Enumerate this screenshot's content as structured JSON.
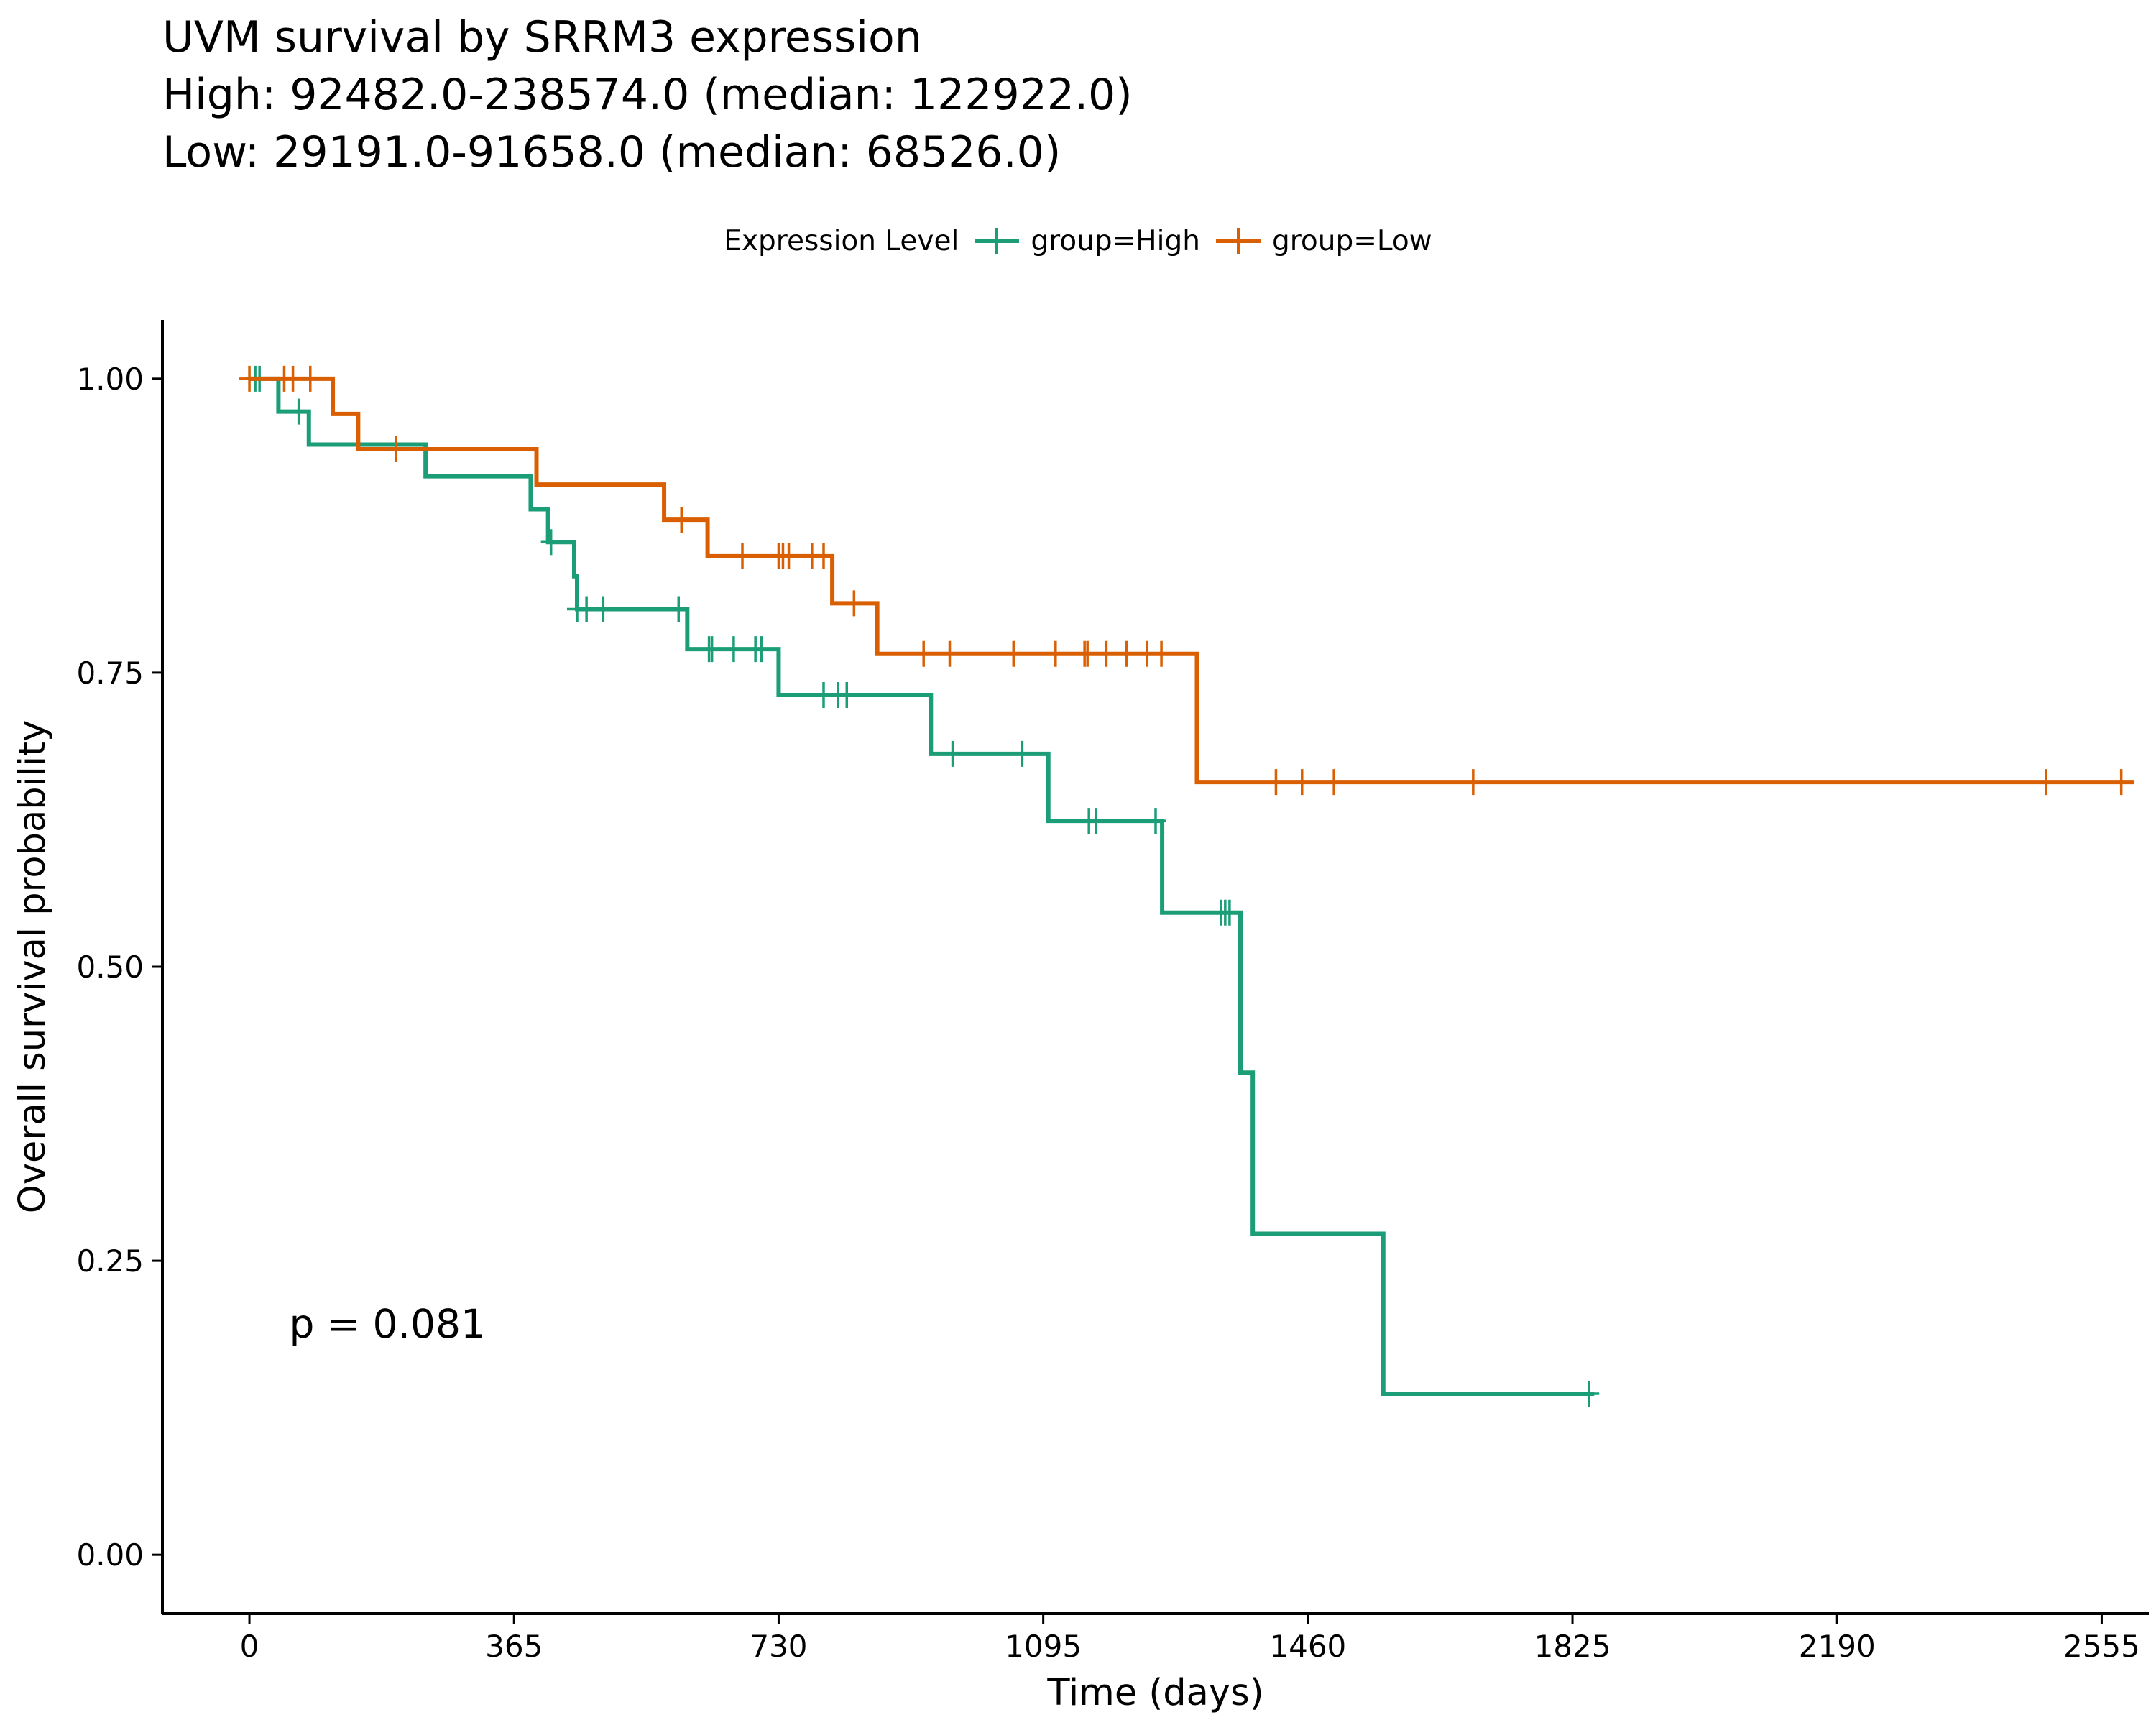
{
  "chart_data": {
    "type": "line",
    "subtype": "kaplan-meier step",
    "title": "UVM survival by SRRM3 expression",
    "subtitle_lines": [
      "High: 92482.0-238574.0 (median: 122922.0)",
      "Low: 29191.0-91658.0 (median: 68526.0)"
    ],
    "xlabel": "Time (days)",
    "ylabel": "Overall survival probability",
    "xlim": [
      -120,
      2620
    ],
    "ylim": [
      -0.05,
      1.05
    ],
    "x_ticks": [
      0,
      365,
      730,
      1095,
      1460,
      1825,
      2190,
      2555
    ],
    "y_ticks": [
      0,
      0.25,
      0.5,
      0.75,
      1.0
    ],
    "y_tick_labels": [
      "0.00",
      "0.25",
      "0.50",
      "0.75",
      "1.00"
    ],
    "grid": false,
    "legend": {
      "title": "Expression Level",
      "position": "top"
    },
    "annotation": {
      "text": "p = 0.081",
      "x": 55,
      "y": 0.197
    },
    "series": [
      {
        "name": "group=High",
        "color": "#1b9e77",
        "steps": [
          [
            0,
            1.0
          ],
          [
            40,
            0.972
          ],
          [
            82,
            0.944
          ],
          [
            243,
            0.917
          ],
          [
            388,
            0.889
          ],
          [
            412,
            0.861
          ],
          [
            448,
            0.832
          ],
          [
            452,
            0.804
          ],
          [
            604,
            0.77
          ],
          [
            730,
            0.731
          ],
          [
            940,
            0.681
          ],
          [
            1102,
            0.624
          ],
          [
            1259,
            0.546
          ],
          [
            1367,
            0.41
          ],
          [
            1384,
            0.273
          ],
          [
            1564,
            0.137
          ]
        ],
        "end_x": 1855,
        "censors": [
          [
            8,
            1.0
          ],
          [
            14,
            1.0
          ],
          [
            68,
            0.972
          ],
          [
            416,
            0.861
          ],
          [
            452,
            0.804
          ],
          [
            465,
            0.804
          ],
          [
            488,
            0.804
          ],
          [
            592,
            0.804
          ],
          [
            634,
            0.77
          ],
          [
            638,
            0.77
          ],
          [
            668,
            0.77
          ],
          [
            698,
            0.77
          ],
          [
            706,
            0.77
          ],
          [
            792,
            0.731
          ],
          [
            812,
            0.731
          ],
          [
            824,
            0.731
          ],
          [
            970,
            0.681
          ],
          [
            1066,
            0.681
          ],
          [
            1158,
            0.624
          ],
          [
            1168,
            0.624
          ],
          [
            1250,
            0.624
          ],
          [
            1340,
            0.546
          ],
          [
            1346,
            0.546
          ],
          [
            1352,
            0.546
          ],
          [
            1848,
            0.137
          ]
        ]
      },
      {
        "name": "group=Low",
        "color": "#d95f02",
        "steps": [
          [
            0,
            1.0
          ],
          [
            115,
            0.97
          ],
          [
            150,
            0.94
          ],
          [
            396,
            0.91
          ],
          [
            572,
            0.88
          ],
          [
            632,
            0.849
          ],
          [
            804,
            0.809
          ],
          [
            866,
            0.766
          ],
          [
            1307,
            0.657
          ]
        ],
        "end_x": 2600,
        "censors": [
          [
            0,
            1.0
          ],
          [
            48,
            1.0
          ],
          [
            60,
            1.0
          ],
          [
            84,
            1.0
          ],
          [
            202,
            0.94
          ],
          [
            596,
            0.88
          ],
          [
            680,
            0.849
          ],
          [
            730,
            0.849
          ],
          [
            736,
            0.849
          ],
          [
            744,
            0.849
          ],
          [
            776,
            0.849
          ],
          [
            792,
            0.849
          ],
          [
            834,
            0.809
          ],
          [
            930,
            0.766
          ],
          [
            966,
            0.766
          ],
          [
            1054,
            0.766
          ],
          [
            1112,
            0.766
          ],
          [
            1152,
            0.766
          ],
          [
            1156,
            0.766
          ],
          [
            1182,
            0.766
          ],
          [
            1210,
            0.766
          ],
          [
            1238,
            0.766
          ],
          [
            1258,
            0.766
          ],
          [
            1416,
            0.657
          ],
          [
            1452,
            0.657
          ],
          [
            1496,
            0.657
          ],
          [
            1688,
            0.657
          ],
          [
            2478,
            0.657
          ],
          [
            2582,
            0.657
          ]
        ]
      }
    ]
  }
}
